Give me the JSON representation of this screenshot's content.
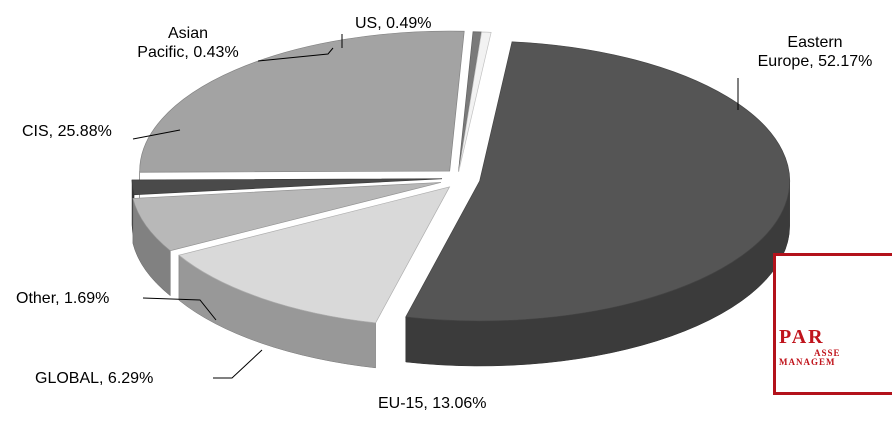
{
  "chart_data": {
    "type": "pie",
    "style": "3d-exploded",
    "title": "",
    "slices": [
      {
        "label": "Eastern Europe",
        "value": 52.17,
        "text": "Eastern\nEurope, 52.17%",
        "color": "#555555"
      },
      {
        "label": "EU-15",
        "value": 13.06,
        "text": "EU-15, 13.06%",
        "color": "#d9d9d9"
      },
      {
        "label": "GLOBAL",
        "value": 6.29,
        "text": "GLOBAL, 6.29%",
        "color": "#b8b8b8"
      },
      {
        "label": "Other",
        "value": 1.69,
        "text": "Other, 1.69%",
        "color": "#4a4a4a"
      },
      {
        "label": "CIS",
        "value": 25.88,
        "text": "CIS, 25.88%",
        "color": "#a3a3a3"
      },
      {
        "label": "Asian Pacific",
        "value": 0.43,
        "text": "Asian\nPacific, 0.43%",
        "color": "#7a7a7a"
      },
      {
        "label": "US",
        "value": 0.49,
        "text": "US, 0.49%",
        "color": "#f2f2f2"
      }
    ]
  },
  "logo": {
    "line1": "PAR",
    "line2": "ASSE",
    "line3": "MANAGEM"
  }
}
